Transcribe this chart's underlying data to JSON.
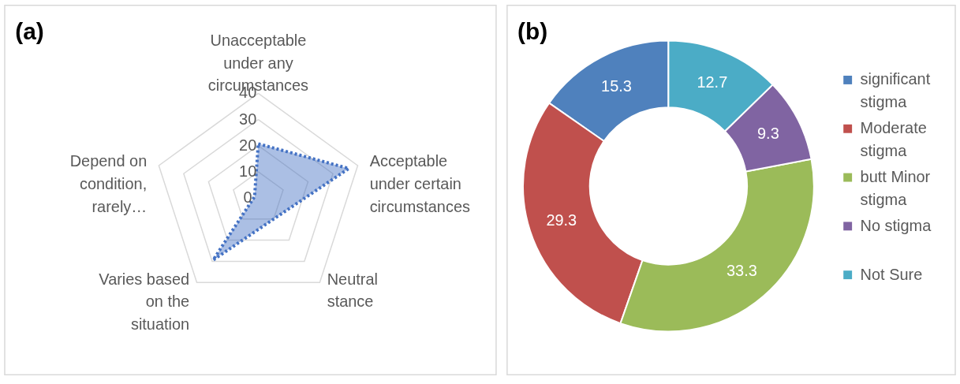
{
  "chart_data": [
    {
      "type": "radar",
      "title": "(a)",
      "categories": [
        "Unacceptable under any circumstances",
        "Acceptable under certain circumstances",
        "Neutral stance",
        "Varies based on the situation",
        "Depend on condition, rarely…"
      ],
      "series": [
        {
          "color": "#4472c4",
          "values": [
            20.7,
            36.4,
            10,
            29.4,
            1.5
          ]
        }
      ],
      "ylim": [
        0,
        40
      ],
      "yticks": [
        0,
        10,
        20,
        30,
        40
      ],
      "grid": true,
      "line_style": "dotted",
      "marker": "none"
    },
    {
      "type": "donut",
      "title": "(b)",
      "categories": [
        "significant stigma",
        "Moderate stigma",
        "butt Minor stigma",
        "No stigma",
        "Not Sure"
      ],
      "values": [
        15.3,
        29.3,
        33.3,
        9.3,
        12.7
      ],
      "colors": [
        "#4f81bd",
        "#c0504d",
        "#9bbb59",
        "#8064a2",
        "#4bacc6"
      ],
      "data_labels": true,
      "legend": "right"
    }
  ]
}
